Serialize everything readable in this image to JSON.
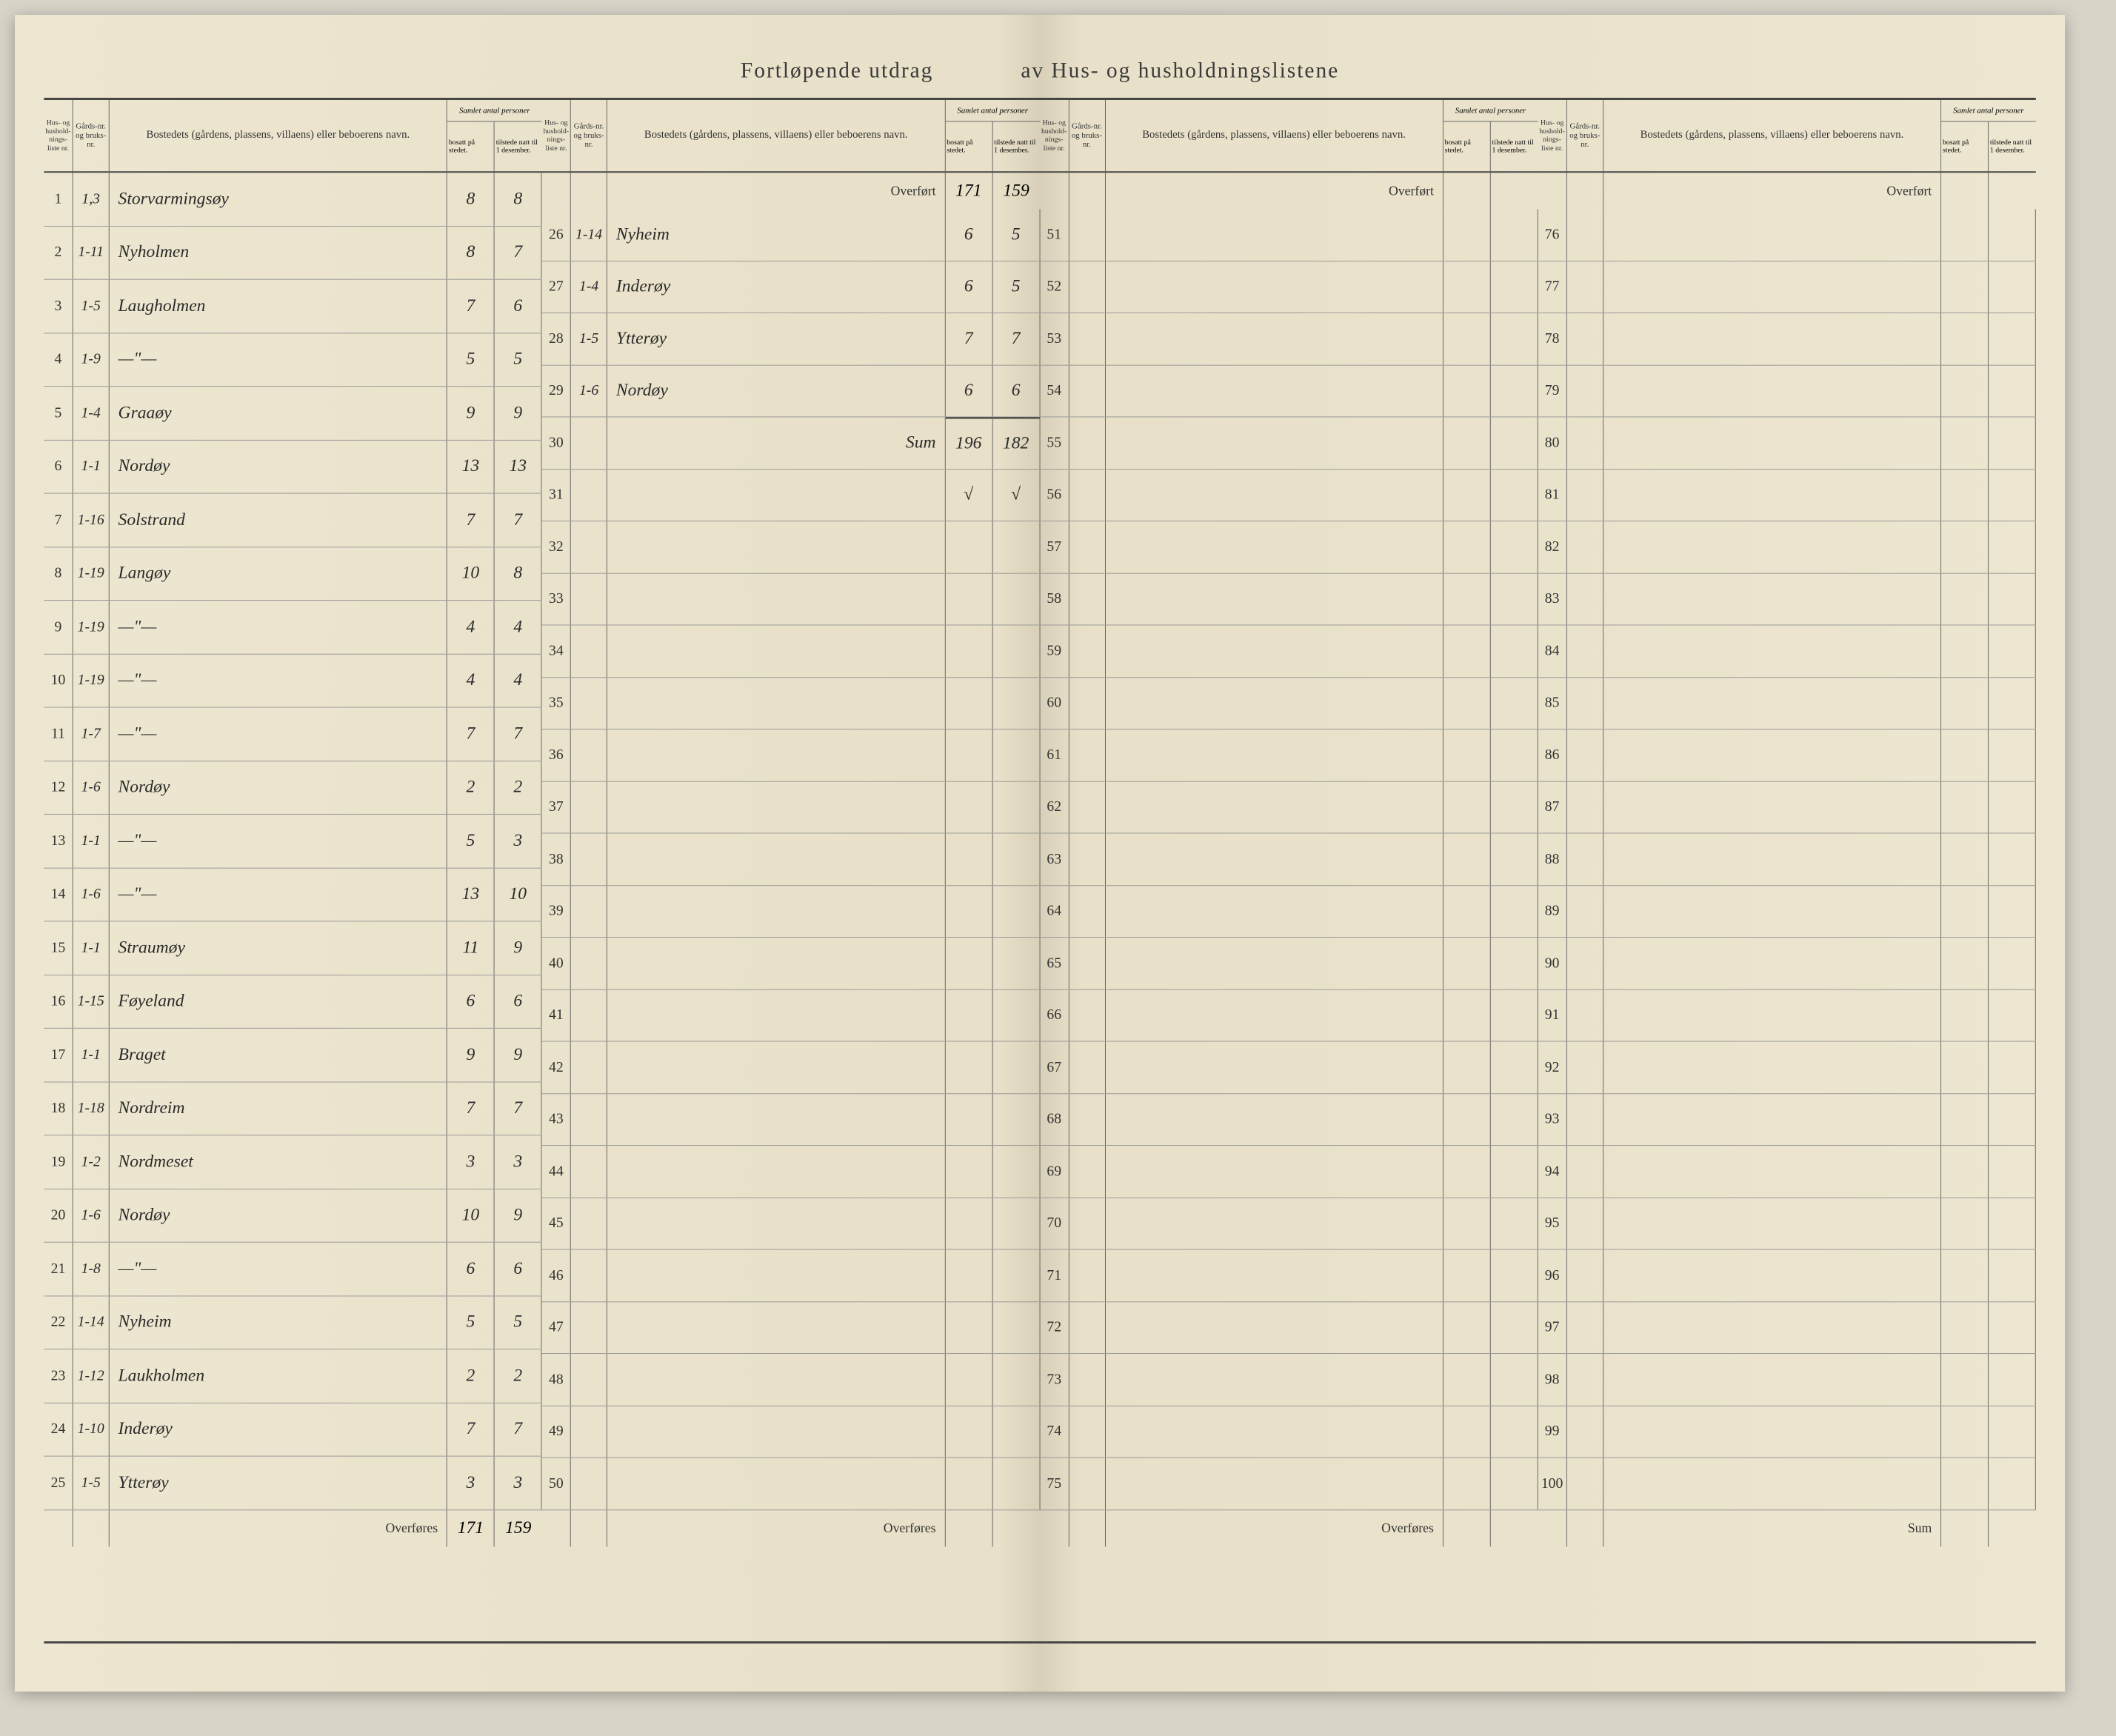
{
  "title_left": "Fortløpende utdrag",
  "title_right": "av Hus- og husholdningslistene",
  "headers": {
    "liste": "Hus- og hushold-nings-liste nr.",
    "gard": "Gårds-nr. og bruks-nr.",
    "bosted": "Bostedets (gårdens, plassens, villaens) eller beboerens navn.",
    "samlet": "Samlet antal personer",
    "bosatt": "bosatt på stedet.",
    "tilstede": "tilstede natt til 1 desember."
  },
  "overfort": "Overført",
  "overfores": "Overføres",
  "sum": "Sum",
  "col1": {
    "rows": [
      {
        "n": "1",
        "g": "1,3",
        "b": "Storvarmingsøy",
        "bo": "8",
        "ti": "8"
      },
      {
        "n": "2",
        "g": "1-11",
        "b": "Nyholmen",
        "bo": "8",
        "ti": "7"
      },
      {
        "n": "3",
        "g": "1-5",
        "b": "Laugholmen",
        "bo": "7",
        "ti": "6"
      },
      {
        "n": "4",
        "g": "1-9",
        "b": "—\"—",
        "bo": "5",
        "ti": "5"
      },
      {
        "n": "5",
        "g": "1-4",
        "b": "Graaøy",
        "bo": "9",
        "ti": "9"
      },
      {
        "n": "6",
        "g": "1-1",
        "b": "Nordøy",
        "bo": "13",
        "ti": "13"
      },
      {
        "n": "7",
        "g": "1-16",
        "b": "Solstrand",
        "bo": "7",
        "ti": "7"
      },
      {
        "n": "8",
        "g": "1-19",
        "b": "Langøy",
        "bo": "10",
        "ti": "8"
      },
      {
        "n": "9",
        "g": "1-19",
        "b": "—\"—",
        "bo": "4",
        "ti": "4"
      },
      {
        "n": "10",
        "g": "1-19",
        "b": "—\"—",
        "bo": "4",
        "ti": "4"
      },
      {
        "n": "11",
        "g": "1-7",
        "b": "—\"—",
        "bo": "7",
        "ti": "7"
      },
      {
        "n": "12",
        "g": "1-6",
        "b": "Nordøy",
        "bo": "2",
        "ti": "2"
      },
      {
        "n": "13",
        "g": "1-1",
        "b": "—\"—",
        "bo": "5",
        "ti": "3"
      },
      {
        "n": "14",
        "g": "1-6",
        "b": "—\"—",
        "bo": "13",
        "ti": "10"
      },
      {
        "n": "15",
        "g": "1-1",
        "b": "Straumøy",
        "bo": "11",
        "ti": "9"
      },
      {
        "n": "16",
        "g": "1-15",
        "b": "Føyeland",
        "bo": "6",
        "ti": "6"
      },
      {
        "n": "17",
        "g": "1-1",
        "b": "Braget",
        "bo": "9",
        "ti": "9"
      },
      {
        "n": "18",
        "g": "1-18",
        "b": "Nordreim",
        "bo": "7",
        "ti": "7"
      },
      {
        "n": "19",
        "g": "1-2",
        "b": "Nordmeset",
        "bo": "3",
        "ti": "3"
      },
      {
        "n": "20",
        "g": "1-6",
        "b": "Nordøy",
        "bo": "10",
        "ti": "9"
      },
      {
        "n": "21",
        "g": "1-8",
        "b": "—\"—",
        "bo": "6",
        "ti": "6"
      },
      {
        "n": "22",
        "g": "1-14",
        "b": "Nyheim",
        "bo": "5",
        "ti": "5"
      },
      {
        "n": "23",
        "g": "1-12",
        "b": "Laukholmen",
        "bo": "2",
        "ti": "2"
      },
      {
        "n": "24",
        "g": "1-10",
        "b": "Inderøy",
        "bo": "7",
        "ti": "7"
      },
      {
        "n": "25",
        "g": "1-5",
        "b": "Ytterøy",
        "bo": "3",
        "ti": "3"
      }
    ],
    "footer_bo": "171",
    "footer_ti": "159"
  },
  "col2": {
    "overfort_bo": "171",
    "overfort_ti": "159",
    "rows": [
      {
        "n": "26",
        "g": "1-14",
        "b": "Nyheim",
        "bo": "6",
        "ti": "5"
      },
      {
        "n": "27",
        "g": "1-4",
        "b": "Inderøy",
        "bo": "6",
        "ti": "5"
      },
      {
        "n": "28",
        "g": "1-5",
        "b": "Ytterøy",
        "bo": "7",
        "ti": "7"
      },
      {
        "n": "29",
        "g": "1-6",
        "b": "Nordøy",
        "bo": "6",
        "ti": "6"
      },
      {
        "n": "30",
        "g": "",
        "b": "Sum",
        "bo": "196",
        "ti": "182",
        "sum": true
      },
      {
        "n": "31",
        "g": "",
        "b": "",
        "bo": "√",
        "ti": "√"
      },
      {
        "n": "32",
        "g": "",
        "b": "",
        "bo": "",
        "ti": ""
      },
      {
        "n": "33",
        "g": "",
        "b": "",
        "bo": "",
        "ti": ""
      },
      {
        "n": "34",
        "g": "",
        "b": "",
        "bo": "",
        "ti": ""
      },
      {
        "n": "35",
        "g": "",
        "b": "",
        "bo": "",
        "ti": ""
      },
      {
        "n": "36",
        "g": "",
        "b": "",
        "bo": "",
        "ti": ""
      },
      {
        "n": "37",
        "g": "",
        "b": "",
        "bo": "",
        "ti": ""
      },
      {
        "n": "38",
        "g": "",
        "b": "",
        "bo": "",
        "ti": ""
      },
      {
        "n": "39",
        "g": "",
        "b": "",
        "bo": "",
        "ti": ""
      },
      {
        "n": "40",
        "g": "",
        "b": "",
        "bo": "",
        "ti": ""
      },
      {
        "n": "41",
        "g": "",
        "b": "",
        "bo": "",
        "ti": ""
      },
      {
        "n": "42",
        "g": "",
        "b": "",
        "bo": "",
        "ti": ""
      },
      {
        "n": "43",
        "g": "",
        "b": "",
        "bo": "",
        "ti": ""
      },
      {
        "n": "44",
        "g": "",
        "b": "",
        "bo": "",
        "ti": ""
      },
      {
        "n": "45",
        "g": "",
        "b": "",
        "bo": "",
        "ti": ""
      },
      {
        "n": "46",
        "g": "",
        "b": "",
        "bo": "",
        "ti": ""
      },
      {
        "n": "47",
        "g": "",
        "b": "",
        "bo": "",
        "ti": ""
      },
      {
        "n": "48",
        "g": "",
        "b": "",
        "bo": "",
        "ti": ""
      },
      {
        "n": "49",
        "g": "",
        "b": "",
        "bo": "",
        "ti": ""
      },
      {
        "n": "50",
        "g": "",
        "b": "",
        "bo": "",
        "ti": ""
      }
    ]
  },
  "col3": {
    "rows": [
      {
        "n": "51"
      },
      {
        "n": "52"
      },
      {
        "n": "53"
      },
      {
        "n": "54"
      },
      {
        "n": "55"
      },
      {
        "n": "56"
      },
      {
        "n": "57"
      },
      {
        "n": "58"
      },
      {
        "n": "59"
      },
      {
        "n": "60"
      },
      {
        "n": "61"
      },
      {
        "n": "62"
      },
      {
        "n": "63"
      },
      {
        "n": "64"
      },
      {
        "n": "65"
      },
      {
        "n": "66"
      },
      {
        "n": "67"
      },
      {
        "n": "68"
      },
      {
        "n": "69"
      },
      {
        "n": "70"
      },
      {
        "n": "71"
      },
      {
        "n": "72"
      },
      {
        "n": "73"
      },
      {
        "n": "74"
      },
      {
        "n": "75"
      }
    ]
  },
  "col4": {
    "rows": [
      {
        "n": "76"
      },
      {
        "n": "77"
      },
      {
        "n": "78"
      },
      {
        "n": "79"
      },
      {
        "n": "80"
      },
      {
        "n": "81"
      },
      {
        "n": "82"
      },
      {
        "n": "83"
      },
      {
        "n": "84"
      },
      {
        "n": "85"
      },
      {
        "n": "86"
      },
      {
        "n": "87"
      },
      {
        "n": "88"
      },
      {
        "n": "89"
      },
      {
        "n": "90"
      },
      {
        "n": "91"
      },
      {
        "n": "92"
      },
      {
        "n": "93"
      },
      {
        "n": "94"
      },
      {
        "n": "95"
      },
      {
        "n": "96"
      },
      {
        "n": "97"
      },
      {
        "n": "98"
      },
      {
        "n": "99"
      },
      {
        "n": "100"
      }
    ]
  },
  "colors": {
    "paper": "#ede6d0",
    "ink": "#2a2a2a",
    "rule": "#666"
  }
}
